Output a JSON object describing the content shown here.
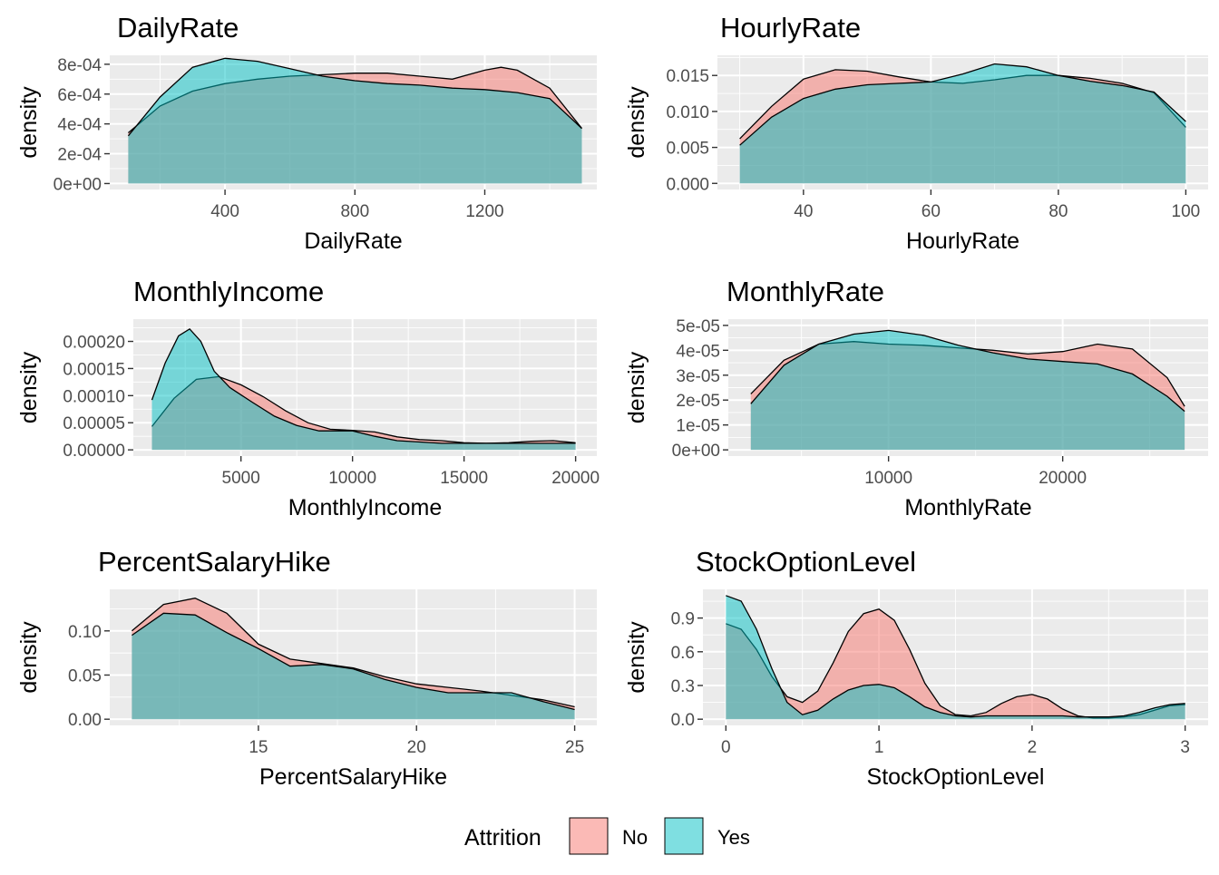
{
  "chart_data": [
    {
      "type": "area",
      "title": "DailyRate",
      "xlabel": "DailyRate",
      "ylabel": "density",
      "xlim": [
        45,
        1545
      ],
      "ylim": [
        -4e-05,
        0.00086
      ],
      "xticks": [
        {
          "v": 400,
          "label": "400"
        },
        {
          "v": 800,
          "label": "800"
        },
        {
          "v": 1200,
          "label": "1200"
        }
      ],
      "yticks": [
        {
          "v": 0,
          "label": "0e+00"
        },
        {
          "v": 0.0002,
          "label": "2e-04"
        },
        {
          "v": 0.0004,
          "label": "4e-04"
        },
        {
          "v": 0.0006,
          "label": "6e-04"
        },
        {
          "v": 0.0008,
          "label": "8e-04"
        }
      ],
      "series": [
        {
          "name": "No",
          "x": [
            102,
            200,
            300,
            400,
            500,
            600,
            700,
            800,
            900,
            1000,
            1100,
            1200,
            1250,
            1300,
            1400,
            1499
          ],
          "y": [
            0.00034,
            0.00052,
            0.00062,
            0.00067,
            0.0007,
            0.00072,
            0.00073,
            0.00074,
            0.00074,
            0.00072,
            0.0007,
            0.00076,
            0.00078,
            0.00076,
            0.00064,
            0.00037
          ]
        },
        {
          "name": "Yes",
          "x": [
            102,
            200,
            300,
            400,
            500,
            600,
            700,
            800,
            900,
            1000,
            1100,
            1200,
            1300,
            1400,
            1499
          ],
          "y": [
            0.00032,
            0.00058,
            0.00078,
            0.00084,
            0.00082,
            0.00077,
            0.00072,
            0.00069,
            0.00067,
            0.00066,
            0.00064,
            0.00063,
            0.00061,
            0.00057,
            0.00037
          ]
        }
      ]
    },
    {
      "type": "area",
      "title": "HourlyRate",
      "xlabel": "HourlyRate",
      "ylabel": "density",
      "xlim": [
        26.5,
        103.5
      ],
      "ylim": [
        -0.00085,
        0.0178
      ],
      "xticks": [
        {
          "v": 40,
          "label": "40"
        },
        {
          "v": 60,
          "label": "60"
        },
        {
          "v": 80,
          "label": "80"
        },
        {
          "v": 100,
          "label": "100"
        }
      ],
      "yticks": [
        {
          "v": 0,
          "label": "0.000"
        },
        {
          "v": 0.005,
          "label": "0.005"
        },
        {
          "v": 0.01,
          "label": "0.010"
        },
        {
          "v": 0.015,
          "label": "0.015"
        }
      ],
      "series": [
        {
          "name": "No",
          "x": [
            30,
            35,
            40,
            45,
            50,
            55,
            60,
            65,
            70,
            75,
            80,
            85,
            90,
            95,
            100
          ],
          "y": [
            0.0062,
            0.0107,
            0.0145,
            0.0158,
            0.0156,
            0.0148,
            0.0141,
            0.0139,
            0.0144,
            0.015,
            0.015,
            0.0146,
            0.0139,
            0.0126,
            0.0078
          ]
        },
        {
          "name": "Yes",
          "x": [
            30,
            35,
            40,
            45,
            50,
            55,
            60,
            65,
            70,
            75,
            80,
            85,
            90,
            95,
            100
          ],
          "y": [
            0.0053,
            0.0092,
            0.0118,
            0.0131,
            0.0137,
            0.0139,
            0.0141,
            0.0152,
            0.0166,
            0.0162,
            0.015,
            0.0142,
            0.0136,
            0.0127,
            0.0086
          ]
        }
      ]
    },
    {
      "type": "area",
      "title": "MonthlyIncome",
      "xlabel": "MonthlyIncome",
      "ylabel": "density",
      "xlim": [
        175,
        20950
      ],
      "ylim": [
        -1.15e-05,
        0.000241
      ],
      "xticks": [
        {
          "v": 5000,
          "label": "5000"
        },
        {
          "v": 10000,
          "label": "10000"
        },
        {
          "v": 15000,
          "label": "15000"
        },
        {
          "v": 20000,
          "label": "20000"
        }
      ],
      "yticks": [
        {
          "v": 0,
          "label": "0.00000"
        },
        {
          "v": 5e-05,
          "label": "0.00005"
        },
        {
          "v": 0.0001,
          "label": "0.00010"
        },
        {
          "v": 0.00015,
          "label": "0.00015"
        },
        {
          "v": 0.0002,
          "label": "0.00020"
        }
      ],
      "series": [
        {
          "name": "No",
          "x": [
            1009,
            2000,
            3000,
            4000,
            5000,
            6000,
            7000,
            8000,
            9000,
            10000,
            11000,
            12000,
            13000,
            14000,
            15000,
            16000,
            17000,
            18000,
            19000,
            19999
          ],
          "y": [
            4.3e-05,
            9.5e-05,
            0.00013,
            0.000135,
            0.00012,
            9.8e-05,
            7.2e-05,
            5e-05,
            3.8e-05,
            3.6e-05,
            3.3e-05,
            2.4e-05,
            1.9e-05,
            1.7e-05,
            1.3e-05,
            1.2e-05,
            1.3e-05,
            1.6e-05,
            1.7e-05,
            1.3e-05
          ]
        },
        {
          "name": "Yes",
          "x": [
            1009,
            1600,
            2200,
            2700,
            3200,
            3800,
            4500,
            5500,
            6500,
            7500,
            8500,
            10000,
            11000,
            12000,
            14000,
            16000,
            18000,
            19999
          ],
          "y": [
            9.2e-05,
            0.00016,
            0.00021,
            0.000223,
            0.0002,
            0.000145,
            0.000115,
            8.8e-05,
            6.2e-05,
            4.5e-05,
            3.5e-05,
            3.5e-05,
            2.5e-05,
            1.7e-05,
            1.2e-05,
            1.2e-05,
            1.2e-05,
            1.2e-05
          ]
        }
      ]
    },
    {
      "type": "area",
      "title": "MonthlyRate",
      "xlabel": "MonthlyRate",
      "ylabel": "density",
      "xlim": [
        800,
        28350
      ],
      "ylim": [
        -2.5e-06,
        5.25e-05
      ],
      "xticks": [
        {
          "v": 10000,
          "label": "10000"
        },
        {
          "v": 20000,
          "label": "20000"
        }
      ],
      "yticks": [
        {
          "v": 0,
          "label": "0e+00"
        },
        {
          "v": 1e-05,
          "label": "1e-05"
        },
        {
          "v": 2e-05,
          "label": "2e-05"
        },
        {
          "v": 3e-05,
          "label": "3e-05"
        },
        {
          "v": 4e-05,
          "label": "4e-05"
        },
        {
          "v": 5e-05,
          "label": "5e-05"
        }
      ],
      "series": [
        {
          "name": "No",
          "x": [
            2094,
            4000,
            6000,
            8000,
            10000,
            12000,
            14000,
            16000,
            18000,
            20000,
            22000,
            24000,
            26000,
            26999
          ],
          "y": [
            2.25e-05,
            3.6e-05,
            4.25e-05,
            4.35e-05,
            4.25e-05,
            4.2e-05,
            4.1e-05,
            4e-05,
            3.85e-05,
            3.95e-05,
            4.25e-05,
            4.05e-05,
            2.9e-05,
            1.75e-05
          ]
        },
        {
          "name": "Yes",
          "x": [
            2094,
            4000,
            6000,
            8000,
            10000,
            12000,
            14000,
            16000,
            18000,
            20000,
            22000,
            24000,
            26000,
            26999
          ],
          "y": [
            1.85e-05,
            3.4e-05,
            4.25e-05,
            4.65e-05,
            4.8e-05,
            4.6e-05,
            4.2e-05,
            3.9e-05,
            3.65e-05,
            3.55e-05,
            3.45e-05,
            3.05e-05,
            2.15e-05,
            1.55e-05
          ]
        }
      ]
    },
    {
      "type": "area",
      "title": "PercentSalaryHike",
      "xlabel": "PercentSalaryHike",
      "ylabel": "density",
      "xlim": [
        10.3,
        25.7
      ],
      "ylim": [
        -0.007,
        0.147
      ],
      "xticks": [
        {
          "v": 15,
          "label": "15"
        },
        {
          "v": 20,
          "label": "20"
        },
        {
          "v": 25,
          "label": "25"
        }
      ],
      "yticks": [
        {
          "v": 0,
          "label": "0.00"
        },
        {
          "v": 0.05,
          "label": "0.05"
        },
        {
          "v": 0.1,
          "label": "0.10"
        }
      ],
      "series": [
        {
          "name": "No",
          "x": [
            11,
            12,
            13,
            14,
            15,
            16,
            17,
            18,
            19,
            20,
            21,
            22,
            23,
            24,
            25
          ],
          "y": [
            0.1,
            0.13,
            0.137,
            0.12,
            0.085,
            0.068,
            0.063,
            0.058,
            0.048,
            0.04,
            0.036,
            0.032,
            0.027,
            0.022,
            0.014
          ]
        },
        {
          "name": "Yes",
          "x": [
            11,
            12,
            13,
            14,
            15,
            16,
            17,
            18,
            19,
            20,
            21,
            22,
            23,
            24,
            25
          ],
          "y": [
            0.095,
            0.12,
            0.118,
            0.098,
            0.08,
            0.06,
            0.062,
            0.057,
            0.045,
            0.036,
            0.03,
            0.03,
            0.03,
            0.02,
            0.011
          ]
        }
      ]
    },
    {
      "type": "area",
      "title": "StockOptionLevel",
      "xlabel": "StockOptionLevel",
      "ylabel": "density",
      "xlim": [
        -0.15,
        3.15
      ],
      "ylim": [
        -0.055,
        1.155
      ],
      "xticks": [
        {
          "v": 0,
          "label": "0"
        },
        {
          "v": 1,
          "label": "1"
        },
        {
          "v": 2,
          "label": "2"
        },
        {
          "v": 3,
          "label": "3"
        }
      ],
      "yticks": [
        {
          "v": 0,
          "label": "0.0"
        },
        {
          "v": 0.3,
          "label": "0.3"
        },
        {
          "v": 0.6,
          "label": "0.6"
        },
        {
          "v": 0.9,
          "label": "0.9"
        }
      ],
      "series": [
        {
          "name": "No",
          "x": [
            0,
            0.1,
            0.2,
            0.3,
            0.4,
            0.5,
            0.6,
            0.7,
            0.8,
            0.9,
            1.0,
            1.1,
            1.2,
            1.3,
            1.4,
            1.5,
            1.6,
            1.7,
            1.8,
            1.9,
            2.0,
            2.1,
            2.2,
            2.3,
            2.4,
            2.5,
            2.6,
            2.7,
            2.8,
            2.9,
            3.0
          ],
          "y": [
            0.85,
            0.8,
            0.62,
            0.38,
            0.2,
            0.15,
            0.25,
            0.5,
            0.78,
            0.94,
            0.98,
            0.88,
            0.62,
            0.32,
            0.12,
            0.04,
            0.03,
            0.06,
            0.14,
            0.2,
            0.22,
            0.18,
            0.09,
            0.03,
            0.01,
            0.01,
            0.02,
            0.04,
            0.08,
            0.12,
            0.13
          ]
        },
        {
          "name": "Yes",
          "x": [
            0,
            0.1,
            0.2,
            0.3,
            0.4,
            0.5,
            0.6,
            0.7,
            0.8,
            0.9,
            1.0,
            1.1,
            1.2,
            1.3,
            1.4,
            1.5,
            1.6,
            1.7,
            1.8,
            1.9,
            2.0,
            2.1,
            2.2,
            2.3,
            2.4,
            2.5,
            2.6,
            2.7,
            2.8,
            2.9,
            3.0
          ],
          "y": [
            1.1,
            1.05,
            0.8,
            0.45,
            0.15,
            0.04,
            0.08,
            0.18,
            0.26,
            0.3,
            0.31,
            0.28,
            0.2,
            0.11,
            0.06,
            0.03,
            0.02,
            0.03,
            0.03,
            0.03,
            0.03,
            0.03,
            0.03,
            0.02,
            0.02,
            0.02,
            0.03,
            0.06,
            0.1,
            0.13,
            0.14
          ]
        }
      ]
    }
  ],
  "legend": {
    "title": "Attrition",
    "items": [
      {
        "label": "No",
        "color": "#F8766D"
      },
      {
        "label": "Yes",
        "color": "#00BFC4"
      }
    ]
  },
  "colors": {
    "no": "#F8766D",
    "yes": "#00BFC4",
    "panel_bg": "#EBEBEB",
    "grid": "#FFFFFF",
    "text": "#000000",
    "tick_text": "#4D4D4D"
  }
}
